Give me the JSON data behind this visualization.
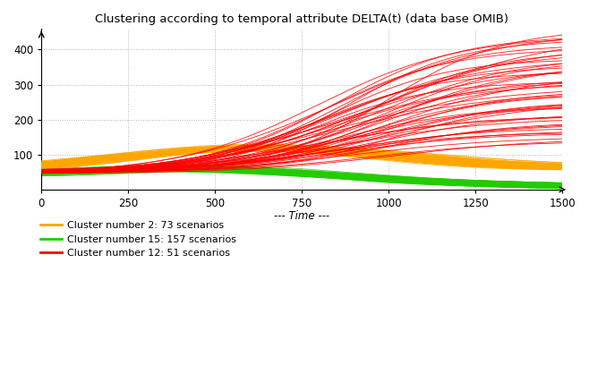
{
  "title": "Clustering according to temporal attribute DELTA(t) (data base OMIB)",
  "xlabel": "--- Time ---",
  "xlim": [
    0,
    1500
  ],
  "ylim": [
    0,
    460
  ],
  "yticks": [
    100,
    200,
    300,
    400
  ],
  "xticks": [
    0,
    250,
    500,
    750,
    1000,
    1250,
    1500
  ],
  "background": "#ffffff",
  "legend": [
    {
      "label": "Cluster number 2: 73 scenarios",
      "color": "#FFA500"
    },
    {
      "label": "Cluster number 15: 157 scenarios",
      "color": "#22CC00"
    },
    {
      "label": "Cluster number 12: 51 scenarios",
      "color": "#FF0000"
    }
  ],
  "cluster2_color": "#FFA500",
  "cluster15_color": "#22CC00",
  "cluster12_color": "#FF0000",
  "n_orange": 73,
  "n_green": 157,
  "n_red": 51,
  "orange_start_mean": 50,
  "orange_start_spread": 5,
  "orange_peak_mean": 115,
  "orange_peak_spread": 8,
  "orange_peak_t_mean": 620,
  "orange_peak_t_spread": 60,
  "orange_end_mean": 58,
  "orange_end_spread": 6,
  "green_start_mean": 38,
  "green_start_spread": 5,
  "green_peak_mean": 68,
  "green_peak_spread": 8,
  "green_peak_t_mean": 480,
  "green_peak_t_spread": 60,
  "green_end_mean": 10,
  "green_end_spread": 8,
  "red_start_mean": 52,
  "red_start_spread": 6,
  "red_end_min": 140,
  "red_end_max": 460,
  "red_inflect_mean": 900,
  "red_inflect_spread": 120
}
